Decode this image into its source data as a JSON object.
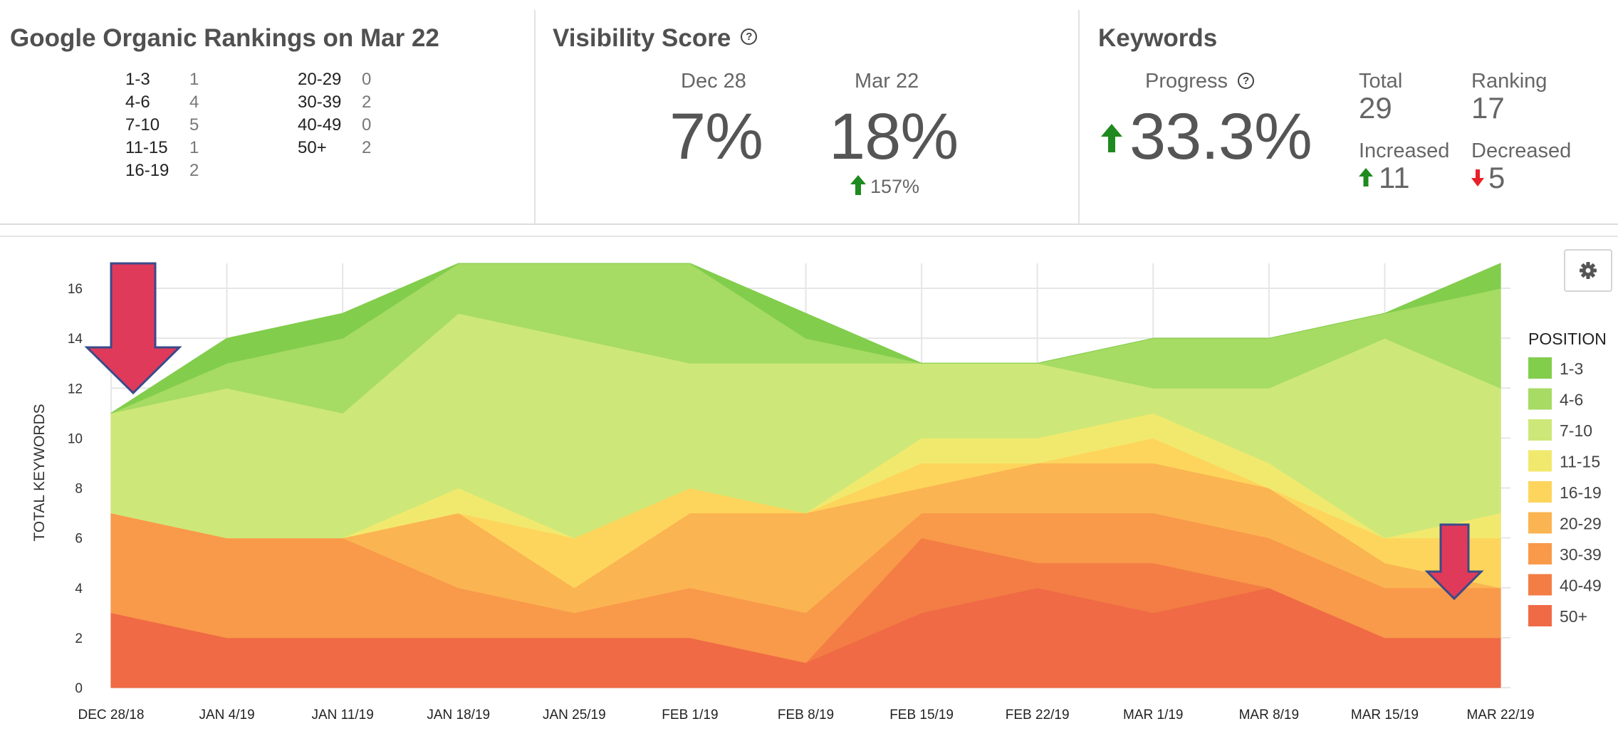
{
  "rankings": {
    "title": "Google Organic Rankings on Mar 22",
    "rows_left": [
      {
        "range": "1-3",
        "count": "1"
      },
      {
        "range": "4-6",
        "count": "4"
      },
      {
        "range": "7-10",
        "count": "5"
      },
      {
        "range": "11-15",
        "count": "1"
      },
      {
        "range": "16-19",
        "count": "2"
      }
    ],
    "rows_right": [
      {
        "range": "20-29",
        "count": "0"
      },
      {
        "range": "30-39",
        "count": "2"
      },
      {
        "range": "40-49",
        "count": "0"
      },
      {
        "range": "50+",
        "count": "2"
      }
    ]
  },
  "visibility": {
    "title": "Visibility Score",
    "start_label": "Dec 28",
    "start_value": "7%",
    "end_label": "Mar 22",
    "end_value": "18%",
    "change": "157%"
  },
  "keywords": {
    "title": "Keywords",
    "progress_label": "Progress",
    "progress_value": "33.3%",
    "total_label": "Total",
    "total_value": "29",
    "ranking_label": "Ranking",
    "ranking_value": "17",
    "increased_label": "Increased",
    "increased_value": "11",
    "decreased_label": "Decreased",
    "decreased_value": "5"
  },
  "colors": {
    "up_arrow": "#1f8a1f",
    "down_arrow": "#e8202a",
    "annotation_arrow": "#e03a5a"
  },
  "chart_data": {
    "type": "area",
    "stacked": true,
    "title": "",
    "xlabel": "",
    "ylabel": "TOTAL KEYWORDS",
    "ylim": [
      0,
      17
    ],
    "yticks": [
      0,
      2,
      4,
      6,
      8,
      10,
      12,
      14,
      16
    ],
    "grid": true,
    "legend_title": "POSITION",
    "legend_position": "right",
    "categories": [
      "DEC 28/18",
      "JAN 4/19",
      "JAN 11/19",
      "JAN 18/19",
      "JAN 25/19",
      "FEB 1/19",
      "FEB 8/19",
      "FEB 15/19",
      "FEB 22/19",
      "MAR 1/19",
      "MAR 8/19",
      "MAR 15/19",
      "MAR 22/19"
    ],
    "series": [
      {
        "name": "50+",
        "color": "#ef6a45",
        "values": [
          3,
          2,
          2,
          2,
          2,
          2,
          1,
          3,
          4,
          3,
          4,
          2,
          2
        ]
      },
      {
        "name": "40-49",
        "color": "#f37d44",
        "values": [
          0,
          0,
          0,
          0,
          0,
          0,
          0,
          3,
          1,
          2,
          0,
          0,
          0
        ]
      },
      {
        "name": "30-39",
        "color": "#f9994a",
        "values": [
          4,
          4,
          4,
          2,
          1,
          2,
          2,
          1,
          2,
          2,
          2,
          2,
          2
        ]
      },
      {
        "name": "20-29",
        "color": "#fbb452",
        "values": [
          0,
          0,
          0,
          3,
          1,
          3,
          4,
          1,
          2,
          2,
          2,
          1,
          0
        ]
      },
      {
        "name": "16-19",
        "color": "#fdd55c",
        "values": [
          0,
          0,
          0,
          0,
          2,
          1,
          0,
          1,
          0,
          1,
          0,
          1,
          2
        ]
      },
      {
        "name": "11-15",
        "color": "#f1e96e",
        "values": [
          0,
          0,
          0,
          1,
          0,
          0,
          0,
          1,
          1,
          1,
          1,
          0,
          1
        ]
      },
      {
        "name": "7-10",
        "color": "#cde878",
        "values": [
          4,
          6,
          5,
          7,
          8,
          5,
          6,
          3,
          3,
          1,
          3,
          8,
          5
        ]
      },
      {
        "name": "4-6",
        "color": "#a6db64",
        "values": [
          0,
          1,
          3,
          2,
          3,
          4,
          1,
          0,
          0,
          2,
          2,
          1,
          4
        ]
      },
      {
        "name": "1-3",
        "color": "#82cd4c",
        "values": [
          0,
          1,
          1,
          0,
          0,
          0,
          1,
          0,
          0,
          0,
          0,
          0,
          1
        ]
      }
    ]
  }
}
